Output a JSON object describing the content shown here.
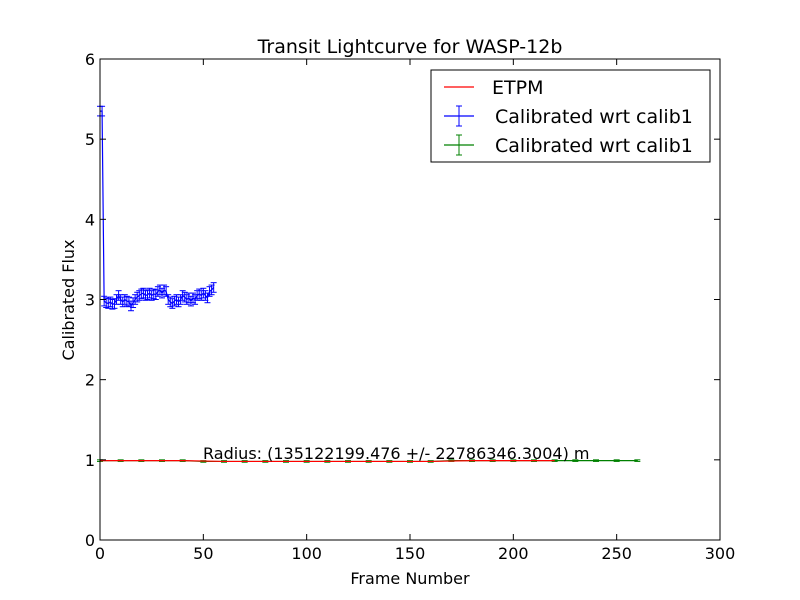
{
  "chart_data": {
    "type": "line",
    "title": "Transit Lightcurve for WASP-12b",
    "xlabel": "Frame Number",
    "ylabel": "Calibrated Flux",
    "xlim": [
      0,
      300
    ],
    "ylim": [
      0,
      6
    ],
    "xticks": [
      "0",
      "50",
      "100",
      "150",
      "200",
      "250",
      "300"
    ],
    "yticks": [
      "0",
      "1",
      "2",
      "3",
      "4",
      "5",
      "6"
    ],
    "grid": false,
    "legend_position": "top-right",
    "annotation": "Radius: (135122199.476 +/- 22786346.3004) m",
    "series": [
      {
        "name": "ETPM",
        "style": "line",
        "color": "#ff0000",
        "x": [
          0,
          20,
          40,
          60,
          80,
          100,
          120,
          140,
          160,
          180,
          200,
          220
        ],
        "y": [
          0.99,
          0.99,
          0.99,
          0.98,
          0.98,
          0.98,
          0.98,
          0.98,
          0.98,
          0.99,
          0.99,
          0.99
        ]
      },
      {
        "name": "Calibrated wrt calib1",
        "style": "errorbar",
        "color": "#0000ff",
        "x": [
          0,
          1,
          2,
          3,
          4,
          5,
          6,
          7,
          8,
          9,
          10,
          11,
          12,
          13,
          14,
          15,
          16,
          17,
          18,
          19,
          20,
          21,
          22,
          23,
          24,
          25,
          26,
          27,
          28,
          29,
          30,
          31,
          32,
          33,
          34,
          35,
          36,
          37,
          38,
          39,
          40,
          41,
          42,
          43,
          44,
          45,
          46,
          47,
          48,
          49,
          50,
          51,
          52,
          53,
          54,
          55
        ],
        "y": [
          5.35,
          5.35,
          2.98,
          2.96,
          2.95,
          2.97,
          2.94,
          2.95,
          3.0,
          3.05,
          3.0,
          2.97,
          3.0,
          2.98,
          2.97,
          2.92,
          2.96,
          3.0,
          3.03,
          3.05,
          3.07,
          3.08,
          3.05,
          3.06,
          3.08,
          3.05,
          3.07,
          3.06,
          3.1,
          3.12,
          3.08,
          3.12,
          3.1,
          3.0,
          2.97,
          2.95,
          2.98,
          3.0,
          2.97,
          3.0,
          3.05,
          3.03,
          3.0,
          3.02,
          2.98,
          3.02,
          3.0,
          3.05,
          3.07,
          3.05,
          3.08,
          3.05,
          3.02,
          3.1,
          3.12,
          3.15
        ],
        "yerr": 0.06
      },
      {
        "name": "Calibrated wrt calib1",
        "style": "errorbar",
        "color": "#008000",
        "x": [
          0,
          10,
          20,
          30,
          40,
          50,
          60,
          70,
          80,
          90,
          100,
          110,
          120,
          130,
          140,
          150,
          160,
          170,
          180,
          190,
          200,
          210,
          220,
          230,
          240,
          250,
          260
        ],
        "y": [
          0.99,
          0.99,
          0.99,
          0.99,
          0.99,
          0.98,
          0.98,
          0.98,
          0.98,
          0.98,
          0.98,
          0.98,
          0.98,
          0.98,
          0.98,
          0.98,
          0.98,
          0.99,
          0.99,
          0.99,
          0.99,
          0.99,
          0.99,
          0.99,
          0.99,
          0.99,
          0.99
        ],
        "yerr": 0.01
      }
    ]
  }
}
